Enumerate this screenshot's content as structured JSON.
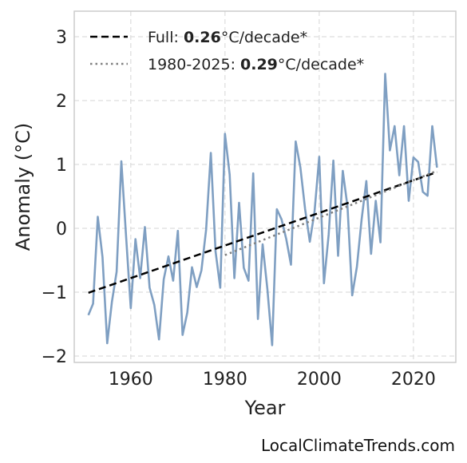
{
  "chart_data": {
    "type": "line",
    "title": "",
    "xlabel": "Year",
    "ylabel": "Anomaly (°C)",
    "xlim": [
      1948,
      2029
    ],
    "ylim": [
      -2.1,
      3.4
    ],
    "xticks": [
      1960,
      1980,
      2000,
      2020
    ],
    "yticks": [
      -2,
      -1,
      0,
      1,
      2,
      3
    ],
    "ytick_labels": [
      "−2",
      "−1",
      "0",
      "1",
      "2",
      "3"
    ],
    "grid": true,
    "legend_position": "top-left",
    "series": [
      {
        "kind": "data",
        "color": "#7f9fc2",
        "x": [
          1951,
          1952,
          1953,
          1954,
          1955,
          1956,
          1957,
          1958,
          1959,
          1960,
          1961,
          1962,
          1963,
          1964,
          1965,
          1966,
          1967,
          1968,
          1969,
          1970,
          1971,
          1972,
          1973,
          1974,
          1975,
          1976,
          1977,
          1978,
          1979,
          1980,
          1981,
          1982,
          1983,
          1984,
          1985,
          1986,
          1987,
          1988,
          1989,
          1990,
          1991,
          1992,
          1993,
          1994,
          1995,
          1996,
          1997,
          1998,
          1999,
          2000,
          2001,
          2002,
          2003,
          2004,
          2005,
          2006,
          2007,
          2008,
          2009,
          2010,
          2011,
          2012,
          2013,
          2014,
          2015,
          2016,
          2017,
          2018,
          2019,
          2020,
          2021,
          2022,
          2023,
          2024,
          2025
        ],
        "y": [
          -1.36,
          -1.18,
          0.18,
          -0.45,
          -1.8,
          -1.15,
          -0.68,
          1.05,
          -0.12,
          -1.25,
          -0.17,
          -0.78,
          0.02,
          -0.93,
          -1.2,
          -1.74,
          -0.8,
          -0.44,
          -0.82,
          -0.04,
          -1.67,
          -1.32,
          -0.61,
          -0.92,
          -0.66,
          -0.02,
          1.18,
          -0.36,
          -0.93,
          1.48,
          0.84,
          -0.78,
          0.4,
          -0.62,
          -0.82,
          0.86,
          -1.42,
          -0.25,
          -0.96,
          -1.83,
          0.3,
          0.14,
          -0.17,
          -0.57,
          1.36,
          0.95,
          0.3,
          -0.21,
          0.26,
          1.12,
          -0.86,
          -0.1,
          1.06,
          -0.43,
          0.9,
          0.34,
          -1.05,
          -0.6,
          0.14,
          0.74,
          -0.4,
          0.43,
          -0.22,
          2.42,
          1.22,
          1.6,
          0.83,
          1.6,
          0.43,
          1.11,
          1.04,
          0.57,
          0.51,
          1.6,
          0.95
        ]
      },
      {
        "kind": "trend",
        "name": "Full",
        "rate": "0.26",
        "unit": "°C/decade*",
        "style": "dashed",
        "color": "#000000",
        "x": [
          1951,
          2025
        ],
        "y": [
          -1.01,
          0.88
        ]
      },
      {
        "kind": "trend",
        "name": "1980-2025",
        "rate": "0.29",
        "unit": "°C/decade*",
        "style": "dotted",
        "color": "#808080",
        "x": [
          1980,
          2025
        ],
        "y": [
          -0.42,
          0.9
        ]
      }
    ]
  },
  "legend": {
    "full_prefix": "Full: ",
    "full_rate": "0.26",
    "full_suffix": "°C/decade*",
    "recent_prefix": "1980-2025: ",
    "recent_rate": "0.29",
    "recent_suffix": "°C/decade*"
  },
  "watermark": "LocalClimateTrends.com"
}
